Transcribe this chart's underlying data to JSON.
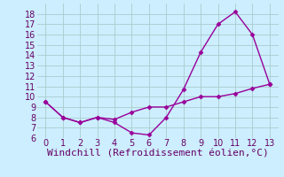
{
  "line1_x": [
    0,
    1,
    2,
    3,
    4,
    5,
    6,
    7,
    8,
    9,
    10,
    11,
    12,
    13
  ],
  "line1_y": [
    9.5,
    8.0,
    7.5,
    8.0,
    7.5,
    6.5,
    6.3,
    8.0,
    10.7,
    14.3,
    17.0,
    18.2,
    16.0,
    11.2
  ],
  "line2_x": [
    0,
    1,
    2,
    3,
    4,
    5,
    6,
    7,
    8,
    9,
    10,
    11,
    12,
    13
  ],
  "line2_y": [
    9.5,
    8.0,
    7.5,
    8.0,
    7.8,
    8.5,
    9.0,
    9.0,
    9.5,
    10.0,
    10.0,
    10.3,
    10.8,
    11.2
  ],
  "line_color": "#990099",
  "bg_color": "#cceeff",
  "grid_color": "#aacccc",
  "xlabel": "Windchill (Refroidissement éolien,°C)",
  "xlim": [
    -0.5,
    13.5
  ],
  "ylim": [
    6,
    19
  ],
  "xticks": [
    0,
    1,
    2,
    3,
    4,
    5,
    6,
    7,
    8,
    9,
    10,
    11,
    12,
    13
  ],
  "yticks": [
    6,
    7,
    8,
    9,
    10,
    11,
    12,
    13,
    14,
    15,
    16,
    17,
    18
  ],
  "marker": "D",
  "markersize": 2.5,
  "linewidth": 1.0,
  "xlabel_fontsize": 8,
  "tick_fontsize": 7,
  "tick_color": "#660066",
  "label_color": "#660066"
}
